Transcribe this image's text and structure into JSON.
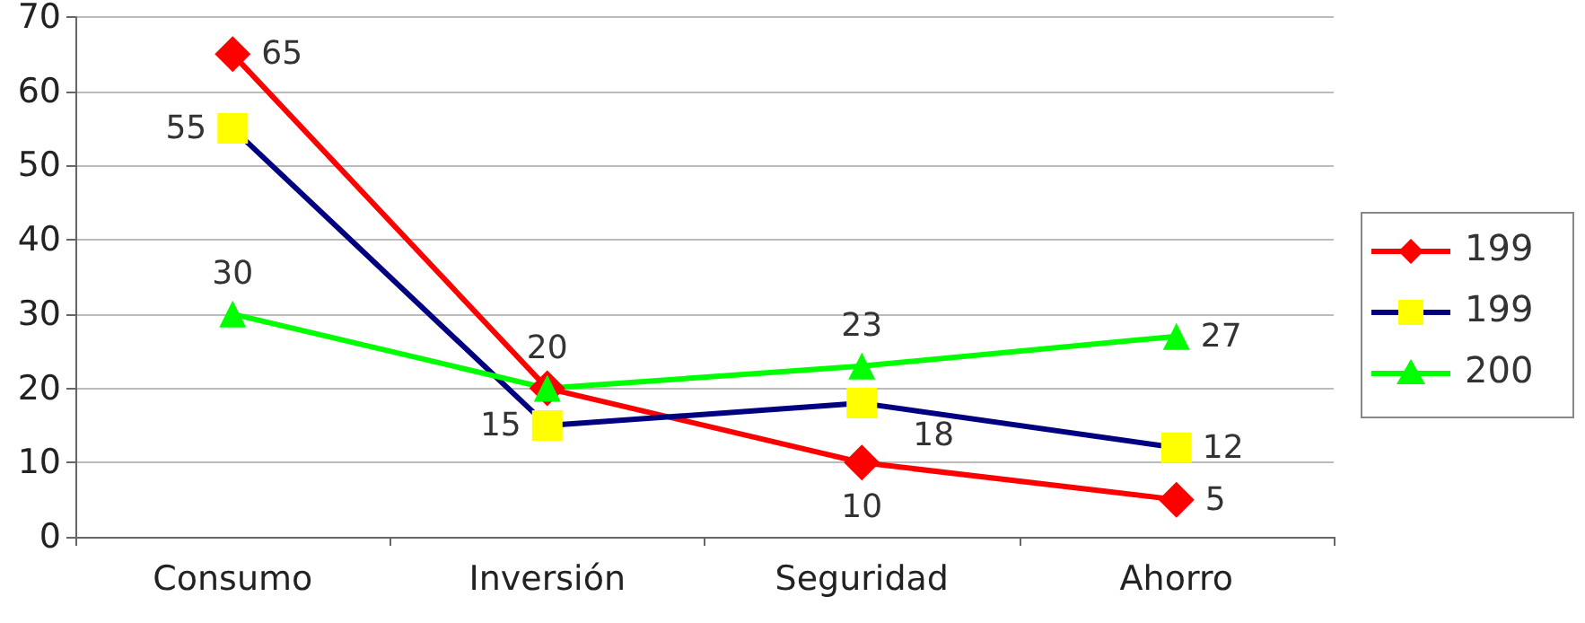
{
  "chart_data": {
    "type": "line",
    "categories": [
      "Consumo",
      "Inversión",
      "Seguridad",
      "Ahorro"
    ],
    "series": [
      {
        "name": "199",
        "color": "#ff0000",
        "marker": "diamond",
        "values": [
          65,
          20,
          10,
          5
        ],
        "value_labels": [
          "65",
          null,
          "10",
          "5"
        ]
      },
      {
        "name": "199",
        "color": "#000080",
        "marker": "square",
        "values": [
          55,
          15,
          18,
          12
        ],
        "value_labels": [
          "55",
          "15",
          "18",
          "12"
        ]
      },
      {
        "name": "200",
        "color": "#00ff00",
        "marker": "triangle",
        "values": [
          30,
          20,
          23,
          27
        ],
        "value_labels": [
          "30",
          "20",
          "23",
          "27"
        ]
      }
    ],
    "ylim": [
      0,
      70
    ],
    "yticks": [
      0,
      10,
      20,
      30,
      40,
      50,
      60,
      70
    ],
    "grid": "y",
    "legend": "right",
    "line_style": "solid"
  }
}
